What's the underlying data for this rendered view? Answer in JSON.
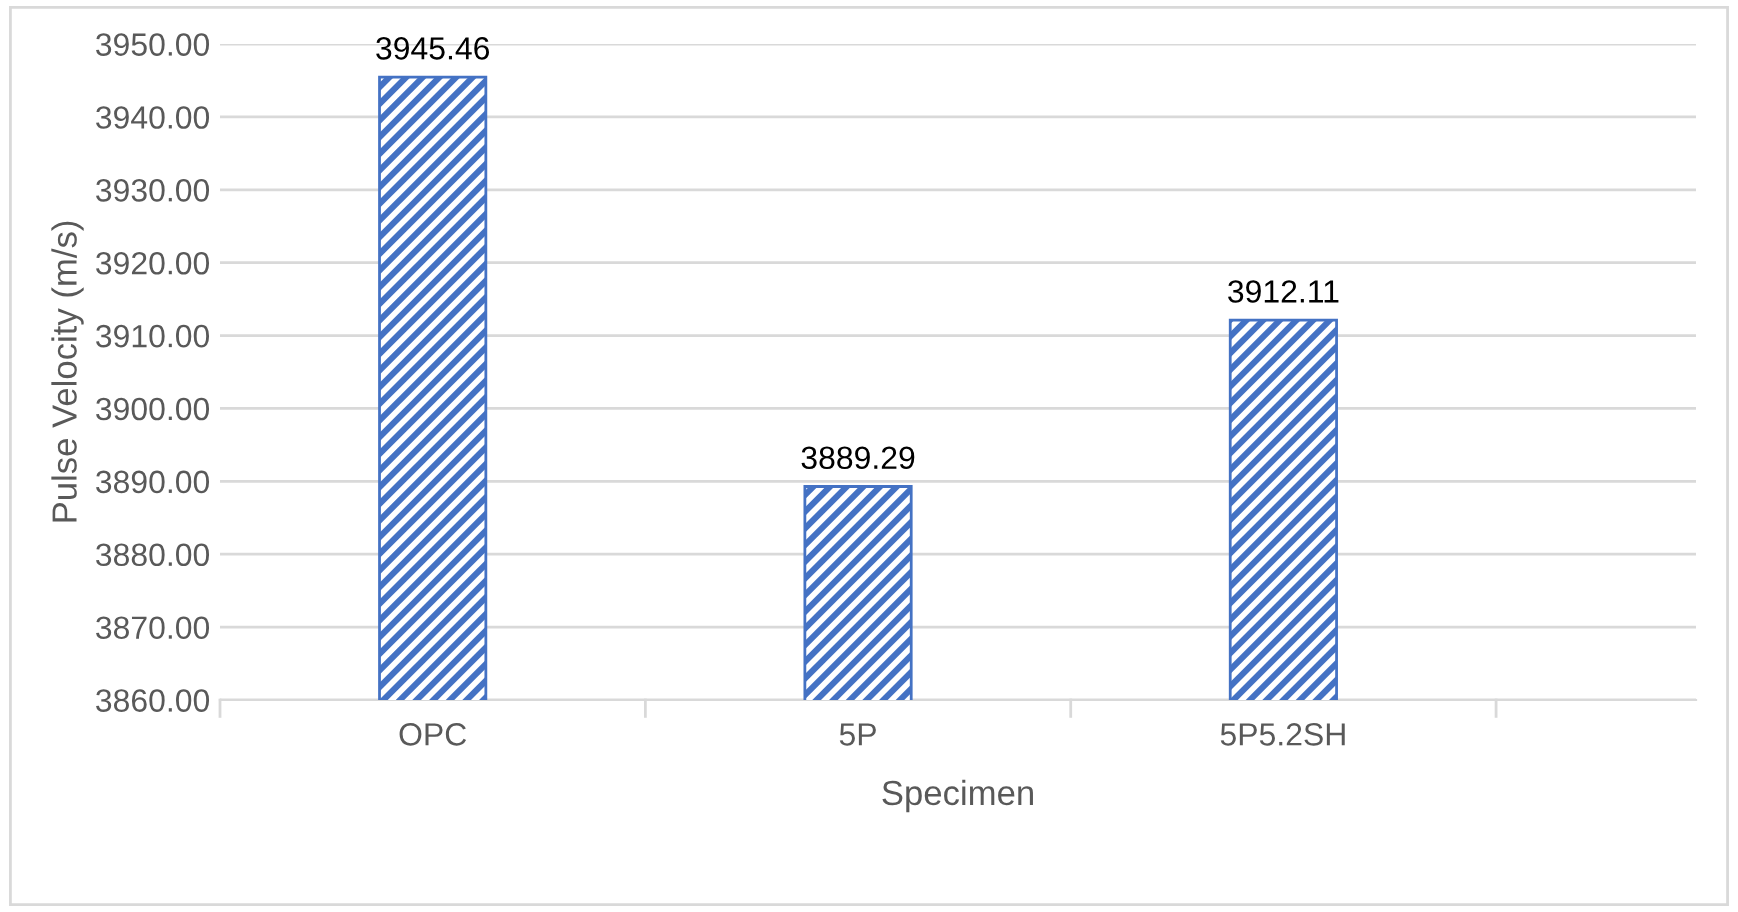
{
  "chart_data": {
    "type": "bar",
    "xlabel": "Specimen",
    "ylabel": "Pulse Velocity (m/s)",
    "categories": [
      "OPC",
      "5P",
      "5P5.2SH"
    ],
    "values": [
      3945.46,
      3889.29,
      3912.11
    ],
    "color": "#4472c4",
    "ylim": [
      3860,
      3950
    ],
    "yticks": [
      {
        "value": 3860,
        "label": "3860.00"
      },
      {
        "value": 3870,
        "label": "3870.00"
      },
      {
        "value": 3880,
        "label": "3880.00"
      },
      {
        "value": 3890,
        "label": "3890.00"
      },
      {
        "value": 3900,
        "label": "3900.00"
      },
      {
        "value": 3910,
        "label": "3910.00"
      },
      {
        "value": 3920,
        "label": "3920.00"
      },
      {
        "value": 3930,
        "label": "3930.00"
      },
      {
        "value": 3940,
        "label": "3940.00"
      },
      {
        "value": 3950,
        "label": "3950.00"
      }
    ],
    "grid": "y",
    "data_labels": true,
    "legend": false
  }
}
